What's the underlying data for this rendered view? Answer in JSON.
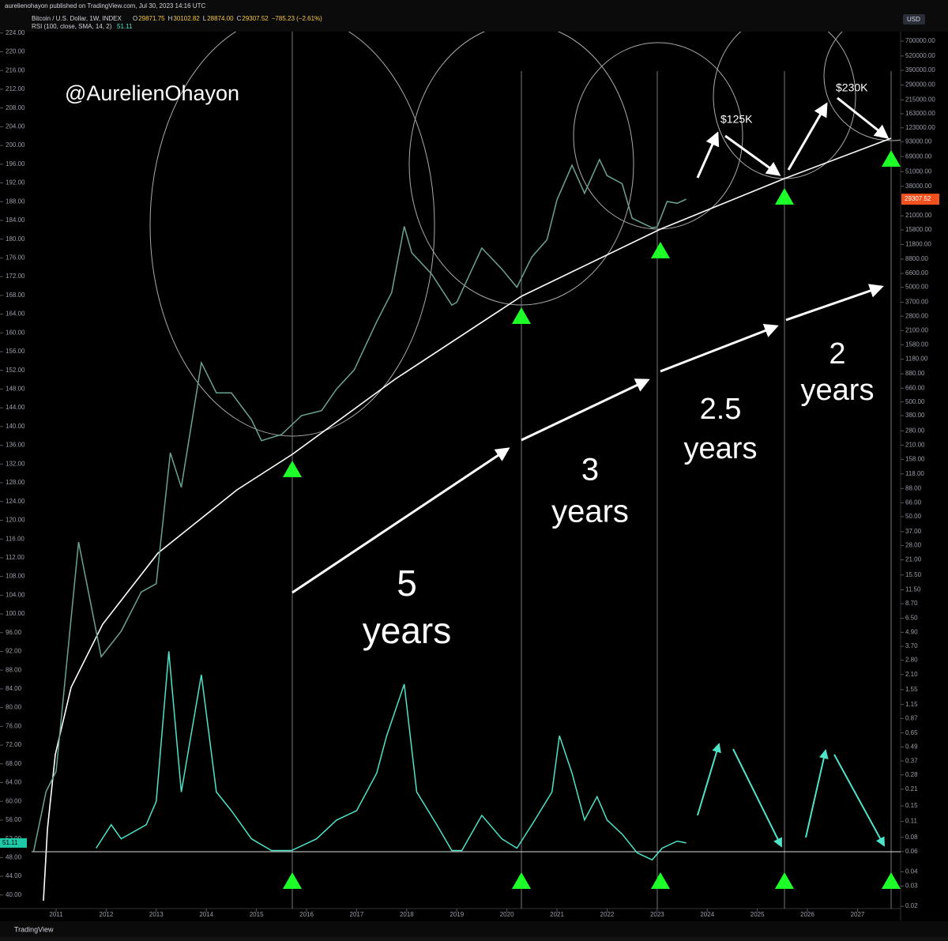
{
  "header": {
    "publisher": "aurelienohayon published on TradingView.com, Jul 30, 2023 14:16 UTC",
    "symbol": "Bitcoin / U.S. Dollar, 1W, INDEX",
    "ohlc": [
      "O",
      "29871.75",
      "H",
      "30102.82",
      "L",
      "28874.00",
      "C",
      "29307.52",
      "−785.23 (−2.61%)"
    ],
    "rsi_title": "RSI (100, close, SMA, 14, 2)",
    "rsi_value": "51.11",
    "currency": "USD",
    "last_price": "29307.52",
    "brand": "TradingView"
  },
  "annotations": {
    "author": "@AurelienOhayon",
    "targets": [
      "$125K",
      "$230K"
    ],
    "cycles": [
      [
        "5",
        "years"
      ],
      [
        "3",
        "years"
      ],
      [
        "2.5",
        "years"
      ],
      [
        "2",
        "years"
      ]
    ]
  },
  "chart_data": {
    "type": "line",
    "log_scale_y2": true,
    "xlim": [
      2009.88,
      2027.86
    ],
    "xticks": [
      2011,
      2012,
      2013,
      2014,
      2015,
      2016,
      2017,
      2018,
      2019,
      2020,
      2021,
      2022,
      2023,
      2024,
      2025,
      2026,
      2027
    ],
    "ylim": [
      37.1,
      224.3
    ],
    "yticks": [
      {
        "value": 40,
        "label": "40.00"
      },
      {
        "value": 44,
        "label": "44.00"
      },
      {
        "value": 48,
        "label": "48.00"
      },
      {
        "value": 52,
        "label": "52.00"
      },
      {
        "value": 56,
        "label": "56.00"
      },
      {
        "value": 60,
        "label": "60.00"
      },
      {
        "value": 64,
        "label": "64.00"
      },
      {
        "value": 68,
        "label": "68.00"
      },
      {
        "value": 72,
        "label": "72.00"
      },
      {
        "value": 76,
        "label": "76.00"
      },
      {
        "value": 80,
        "label": "80.00"
      },
      {
        "value": 84,
        "label": "84.00"
      },
      {
        "value": 88,
        "label": "88.00"
      },
      {
        "value": 92,
        "label": "92.00"
      },
      {
        "value": 96,
        "label": "96.00"
      },
      {
        "value": 100,
        "label": "100.00"
      },
      {
        "value": 104,
        "label": "104.00"
      },
      {
        "value": 108,
        "label": "108.00"
      },
      {
        "value": 112,
        "label": "112.00"
      },
      {
        "value": 116,
        "label": "116.00"
      },
      {
        "value": 120,
        "label": "120.00"
      },
      {
        "value": 124,
        "label": "124.00"
      },
      {
        "value": 128,
        "label": "128.00"
      },
      {
        "value": 132,
        "label": "132.00"
      },
      {
        "value": 136,
        "label": "136.00"
      },
      {
        "value": 140,
        "label": "140.00"
      },
      {
        "value": 144,
        "label": "144.00"
      },
      {
        "value": 148,
        "label": "148.00"
      },
      {
        "value": 152,
        "label": "152.00"
      },
      {
        "value": 156,
        "label": "156.00"
      },
      {
        "value": 160,
        "label": "160.00"
      },
      {
        "value": 164,
        "label": "164.00"
      },
      {
        "value": 168,
        "label": "168.00"
      },
      {
        "value": 172,
        "label": "172.00"
      },
      {
        "value": 176,
        "label": "176.00"
      },
      {
        "value": 180,
        "label": "180.00"
      },
      {
        "value": 184,
        "label": "184.00"
      },
      {
        "value": 188,
        "label": "188.00"
      },
      {
        "value": 192,
        "label": "192.00"
      },
      {
        "value": 196,
        "label": "196.00"
      },
      {
        "value": 200,
        "label": "200.00"
      },
      {
        "value": 204,
        "label": "204.00"
      },
      {
        "value": 208,
        "label": "208.00"
      },
      {
        "value": 212,
        "label": "212.00"
      },
      {
        "value": 216,
        "label": "216.00"
      },
      {
        "value": 220,
        "label": "220.00"
      },
      {
        "value": 224,
        "label": "224.00"
      }
    ],
    "y2lim": [
      0.0191,
      848000
    ],
    "y2ticks": [
      {
        "value": 700000,
        "label": "700000.00"
      },
      {
        "value": 520000,
        "label": "520000.00"
      },
      {
        "value": 390000,
        "label": "390000.00"
      },
      {
        "value": 290000,
        "label": "290000.00"
      },
      {
        "value": 215000,
        "label": "215000.00"
      },
      {
        "value": 163000,
        "label": "163000.00"
      },
      {
        "value": 123000,
        "label": "123000.00"
      },
      {
        "value": 93000,
        "label": "93000.00"
      },
      {
        "value": 69000,
        "label": "69000.00"
      },
      {
        "value": 51000,
        "label": "51000.00"
      },
      {
        "value": 38000,
        "label": "38000.00"
      },
      {
        "value": 21000,
        "label": "21000.00"
      },
      {
        "value": 15800,
        "label": "15800.00"
      },
      {
        "value": 11800,
        "label": "11800.00"
      },
      {
        "value": 8800,
        "label": "8800.00"
      },
      {
        "value": 6600,
        "label": "6600.00"
      },
      {
        "value": 5000,
        "label": "5000.00"
      },
      {
        "value": 3700,
        "label": "3700.00"
      },
      {
        "value": 2800,
        "label": "2800.00"
      },
      {
        "value": 2100,
        "label": "2100.00"
      },
      {
        "value": 1580,
        "label": "1580.00"
      },
      {
        "value": 1180,
        "label": "1180.00"
      },
      {
        "value": 880,
        "label": "880.00"
      },
      {
        "value": 660,
        "label": "660.00"
      },
      {
        "value": 500,
        "label": "500.00"
      },
      {
        "value": 380,
        "label": "380.00"
      },
      {
        "value": 280,
        "label": "280.00"
      },
      {
        "value": 210,
        "label": "210.00"
      },
      {
        "value": 158,
        "label": "158.00"
      },
      {
        "value": 118,
        "label": "118.00"
      },
      {
        "value": 88,
        "label": "88.00"
      },
      {
        "value": 66,
        "label": "66.00"
      },
      {
        "value": 50,
        "label": "50.00"
      },
      {
        "value": 37,
        "label": "37.00"
      },
      {
        "value": 28,
        "label": "28.00"
      },
      {
        "value": 21,
        "label": "21.00"
      },
      {
        "value": 15.5,
        "label": "15.50"
      },
      {
        "value": 11.5,
        "label": "11.50"
      },
      {
        "value": 8.7,
        "label": "8.70"
      },
      {
        "value": 6.5,
        "label": "6.50"
      },
      {
        "value": 4.9,
        "label": "4.90"
      },
      {
        "value": 3.7,
        "label": "3.70"
      },
      {
        "value": 2.8,
        "label": "2.80"
      },
      {
        "value": 2.1,
        "label": "2.10"
      },
      {
        "value": 1.55,
        "label": "1.55"
      },
      {
        "value": 1.15,
        "label": "1.15"
      },
      {
        "value": 0.87,
        "label": "0.87"
      },
      {
        "value": 0.65,
        "label": "0.65"
      },
      {
        "value": 0.49,
        "label": "0.49"
      },
      {
        "value": 0.37,
        "label": "0.37"
      },
      {
        "value": 0.28,
        "label": "0.28"
      },
      {
        "value": 0.21,
        "label": "0.21"
      },
      {
        "value": 0.15,
        "label": "0.15"
      },
      {
        "value": 0.11,
        "label": "0.11"
      },
      {
        "value": 0.08,
        "label": "0.08"
      },
      {
        "value": 0.06,
        "label": "0.06"
      },
      {
        "value": 0.04,
        "label": "0.04"
      },
      {
        "value": 0.03,
        "label": "0.03"
      },
      {
        "value": 0.02,
        "label": "0.02"
      }
    ],
    "series": [
      {
        "color": "#6aa58f",
        "axis": "y2",
        "x": [
          2010.55,
          2010.8,
          2011.0,
          2011.45,
          2011.9,
          2012.3,
          2012.7,
          2013.0,
          2013.28,
          2013.5,
          2013.9,
          2014.2,
          2014.5,
          2014.9,
          2015.1,
          2015.5,
          2015.9,
          2016.3,
          2016.6,
          2016.95,
          2017.4,
          2017.7,
          2017.95,
          2018.1,
          2018.5,
          2018.9,
          2019.0,
          2019.5,
          2019.9,
          2020.2,
          2020.5,
          2020.8,
          2021.0,
          2021.3,
          2021.55,
          2021.85,
          2022.0,
          2022.3,
          2022.5,
          2022.9,
          2023.0,
          2023.2,
          2023.4,
          2023.58
        ],
        "values": [
          0.06,
          0.2,
          0.3,
          30,
          3,
          5,
          11,
          13,
          180,
          90,
          1100,
          600,
          600,
          350,
          230,
          260,
          380,
          420,
          650,
          950,
          2500,
          4500,
          17000,
          10000,
          6500,
          3500,
          3700,
          11000,
          7200,
          5000,
          9200,
          13000,
          29000,
          58000,
          33000,
          65000,
          47000,
          40000,
          20000,
          16500,
          16800,
          28000,
          27000,
          29307.52
        ]
      },
      {
        "color": "#4fe3c8",
        "axis": "y",
        "x": [
          2011.8,
          2012.1,
          2012.3,
          2012.8,
          2013.0,
          2013.25,
          2013.5,
          2013.9,
          2014.2,
          2014.5,
          2014.9,
          2015.3,
          2015.7,
          2016.2,
          2016.6,
          2017.0,
          2017.4,
          2017.6,
          2017.95,
          2018.2,
          2018.6,
          2018.9,
          2019.1,
          2019.5,
          2019.9,
          2020.2,
          2020.5,
          2020.9,
          2021.05,
          2021.3,
          2021.55,
          2021.8,
          2022.0,
          2022.3,
          2022.6,
          2022.9,
          2023.1,
          2023.4,
          2023.58
        ],
        "values": [
          50,
          55,
          52,
          55,
          60,
          92,
          62,
          87,
          62,
          58,
          52,
          49.5,
          49.5,
          52,
          56,
          58,
          66,
          74,
          85,
          62,
          55,
          49.5,
          49.5,
          57,
          52,
          50,
          55,
          62,
          74,
          66,
          56,
          61,
          56,
          53,
          49,
          47.5,
          50,
          51.5,
          51.11
        ]
      }
    ]
  }
}
